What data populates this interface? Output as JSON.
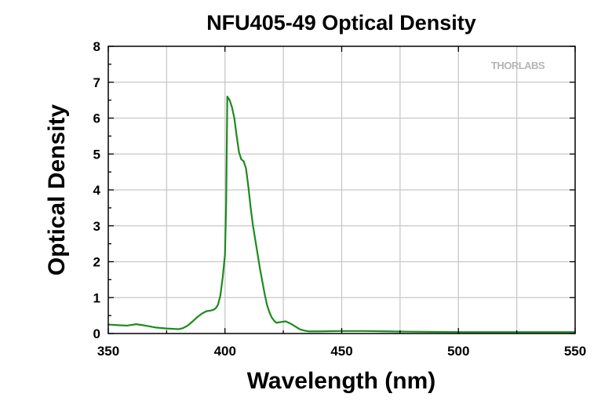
{
  "chart_data": {
    "type": "line",
    "title": "NFU405-49 Optical Density",
    "xlabel": "Wavelength (nm)",
    "ylabel": "Optical Density",
    "xlim": [
      350,
      550
    ],
    "ylim": [
      0,
      8
    ],
    "xticks": [
      350,
      400,
      450,
      500,
      550
    ],
    "yticks": [
      0,
      1,
      2,
      3,
      4,
      5,
      6,
      7,
      8
    ],
    "grid": true,
    "watermark": "THORLABS",
    "line_color": "#1e8a1e",
    "series": [
      {
        "x": [
          350,
          355,
          358,
          362,
          365,
          370,
          375,
          378,
          380,
          382,
          384,
          386,
          388,
          390,
          392,
          394,
          395,
          396,
          397,
          398,
          399,
          400,
          400.5,
          401,
          401.5,
          402,
          403,
          404,
          405,
          406,
          407,
          408,
          409,
          410,
          411,
          412,
          413,
          414,
          415,
          416,
          417,
          418,
          419,
          420,
          421,
          422,
          424,
          426,
          428,
          430,
          432,
          434,
          436,
          440,
          450,
          460,
          470,
          480,
          500,
          520,
          550
        ],
        "y": [
          0.25,
          0.23,
          0.22,
          0.26,
          0.23,
          0.17,
          0.14,
          0.13,
          0.12,
          0.15,
          0.22,
          0.33,
          0.45,
          0.55,
          0.62,
          0.64,
          0.66,
          0.7,
          0.8,
          1.05,
          1.55,
          2.2,
          3.6,
          6.6,
          6.55,
          6.5,
          6.3,
          6.0,
          5.5,
          5.05,
          4.85,
          4.8,
          4.6,
          4.1,
          3.5,
          3.0,
          2.6,
          2.2,
          1.8,
          1.45,
          1.1,
          0.8,
          0.6,
          0.45,
          0.36,
          0.3,
          0.32,
          0.34,
          0.28,
          0.2,
          0.12,
          0.08,
          0.06,
          0.06,
          0.07,
          0.07,
          0.06,
          0.05,
          0.04,
          0.04,
          0.04
        ]
      }
    ]
  }
}
